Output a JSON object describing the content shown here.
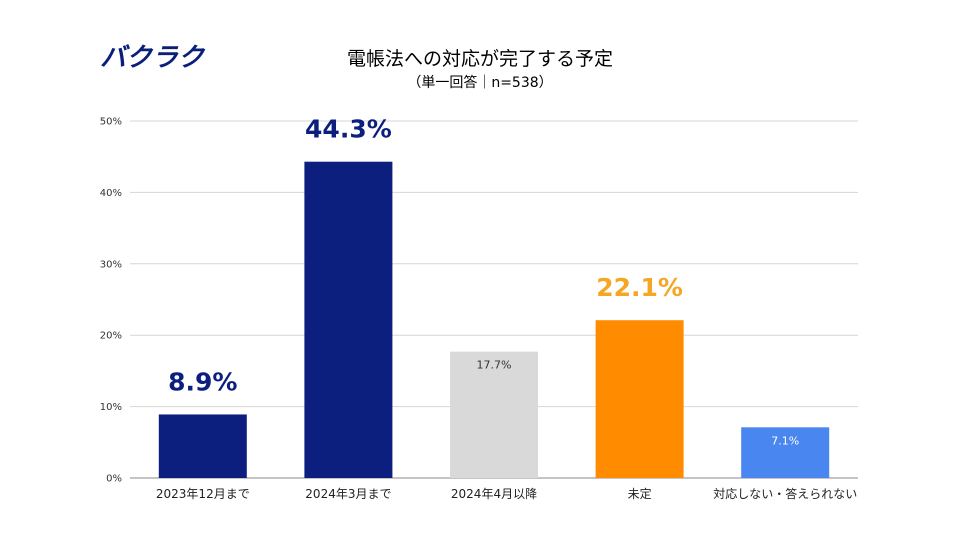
{
  "brand": {
    "logo_text": "バクラク",
    "color": "#0a1f7a"
  },
  "chart_data": {
    "type": "bar",
    "title": "電帳法への対応が完了する予定",
    "subtitle": "（単一回答｜n=538）",
    "categories": [
      "2023年12月まで",
      "2024年3月まで",
      "2024年4月以降",
      "未定",
      "対応しない・答えられない"
    ],
    "values": [
      8.9,
      44.3,
      17.7,
      22.1,
      7.1
    ],
    "labels": [
      "8.9%",
      "44.3%",
      "17.7%",
      "22.1%",
      "7.1%"
    ],
    "colors": [
      "#0c1e7e",
      "#0c1e7e",
      "#d9d9d9",
      "#ff8c00",
      "#4a86f0"
    ],
    "label_colors": [
      "#0c1e7e",
      "#0c1e7e",
      "#333333",
      "#f5a623",
      "#ffffff"
    ],
    "label_style": [
      "large",
      "large",
      "inside",
      "large",
      "inside"
    ],
    "yticks": [
      0,
      10,
      20,
      30,
      40,
      50
    ],
    "ytick_labels": [
      "0%",
      "10%",
      "20%",
      "30%",
      "40%",
      "50%"
    ],
    "ylim": [
      0,
      50
    ],
    "xlabel": "",
    "ylabel": "",
    "grid": true,
    "legend": false
  }
}
